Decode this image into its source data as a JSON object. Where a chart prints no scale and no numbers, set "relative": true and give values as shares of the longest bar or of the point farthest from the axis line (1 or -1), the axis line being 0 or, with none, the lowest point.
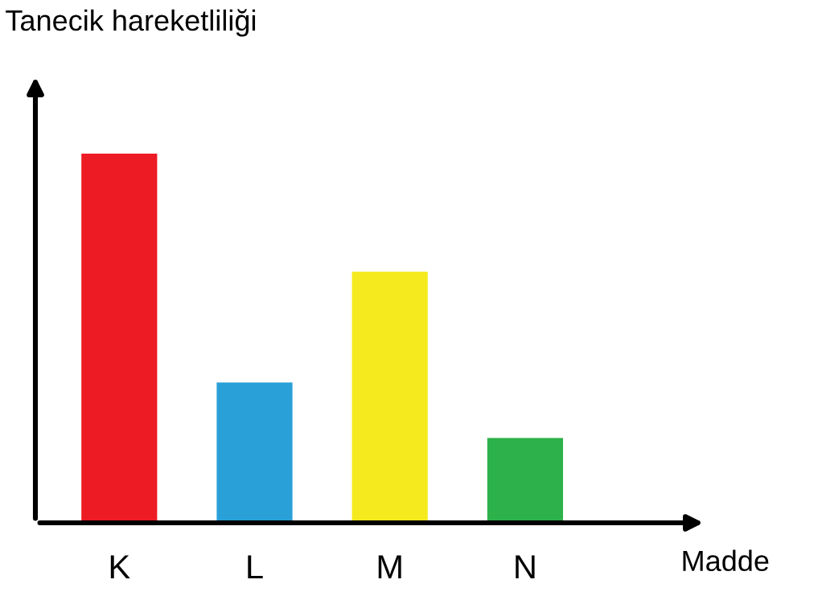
{
  "chart_data": {
    "type": "bar",
    "relative": true,
    "xlabel": "Madde",
    "ylabel": "Tanecik hareketliliği",
    "categories": [
      "K",
      "L",
      "M",
      "N"
    ],
    "values": [
      1,
      0.38,
      0.68,
      0.23
    ],
    "colors": [
      "#ed1c24",
      "#29a0d8",
      "#f5ea1e",
      "#2db14a"
    ],
    "grid": false,
    "legend": false
  }
}
